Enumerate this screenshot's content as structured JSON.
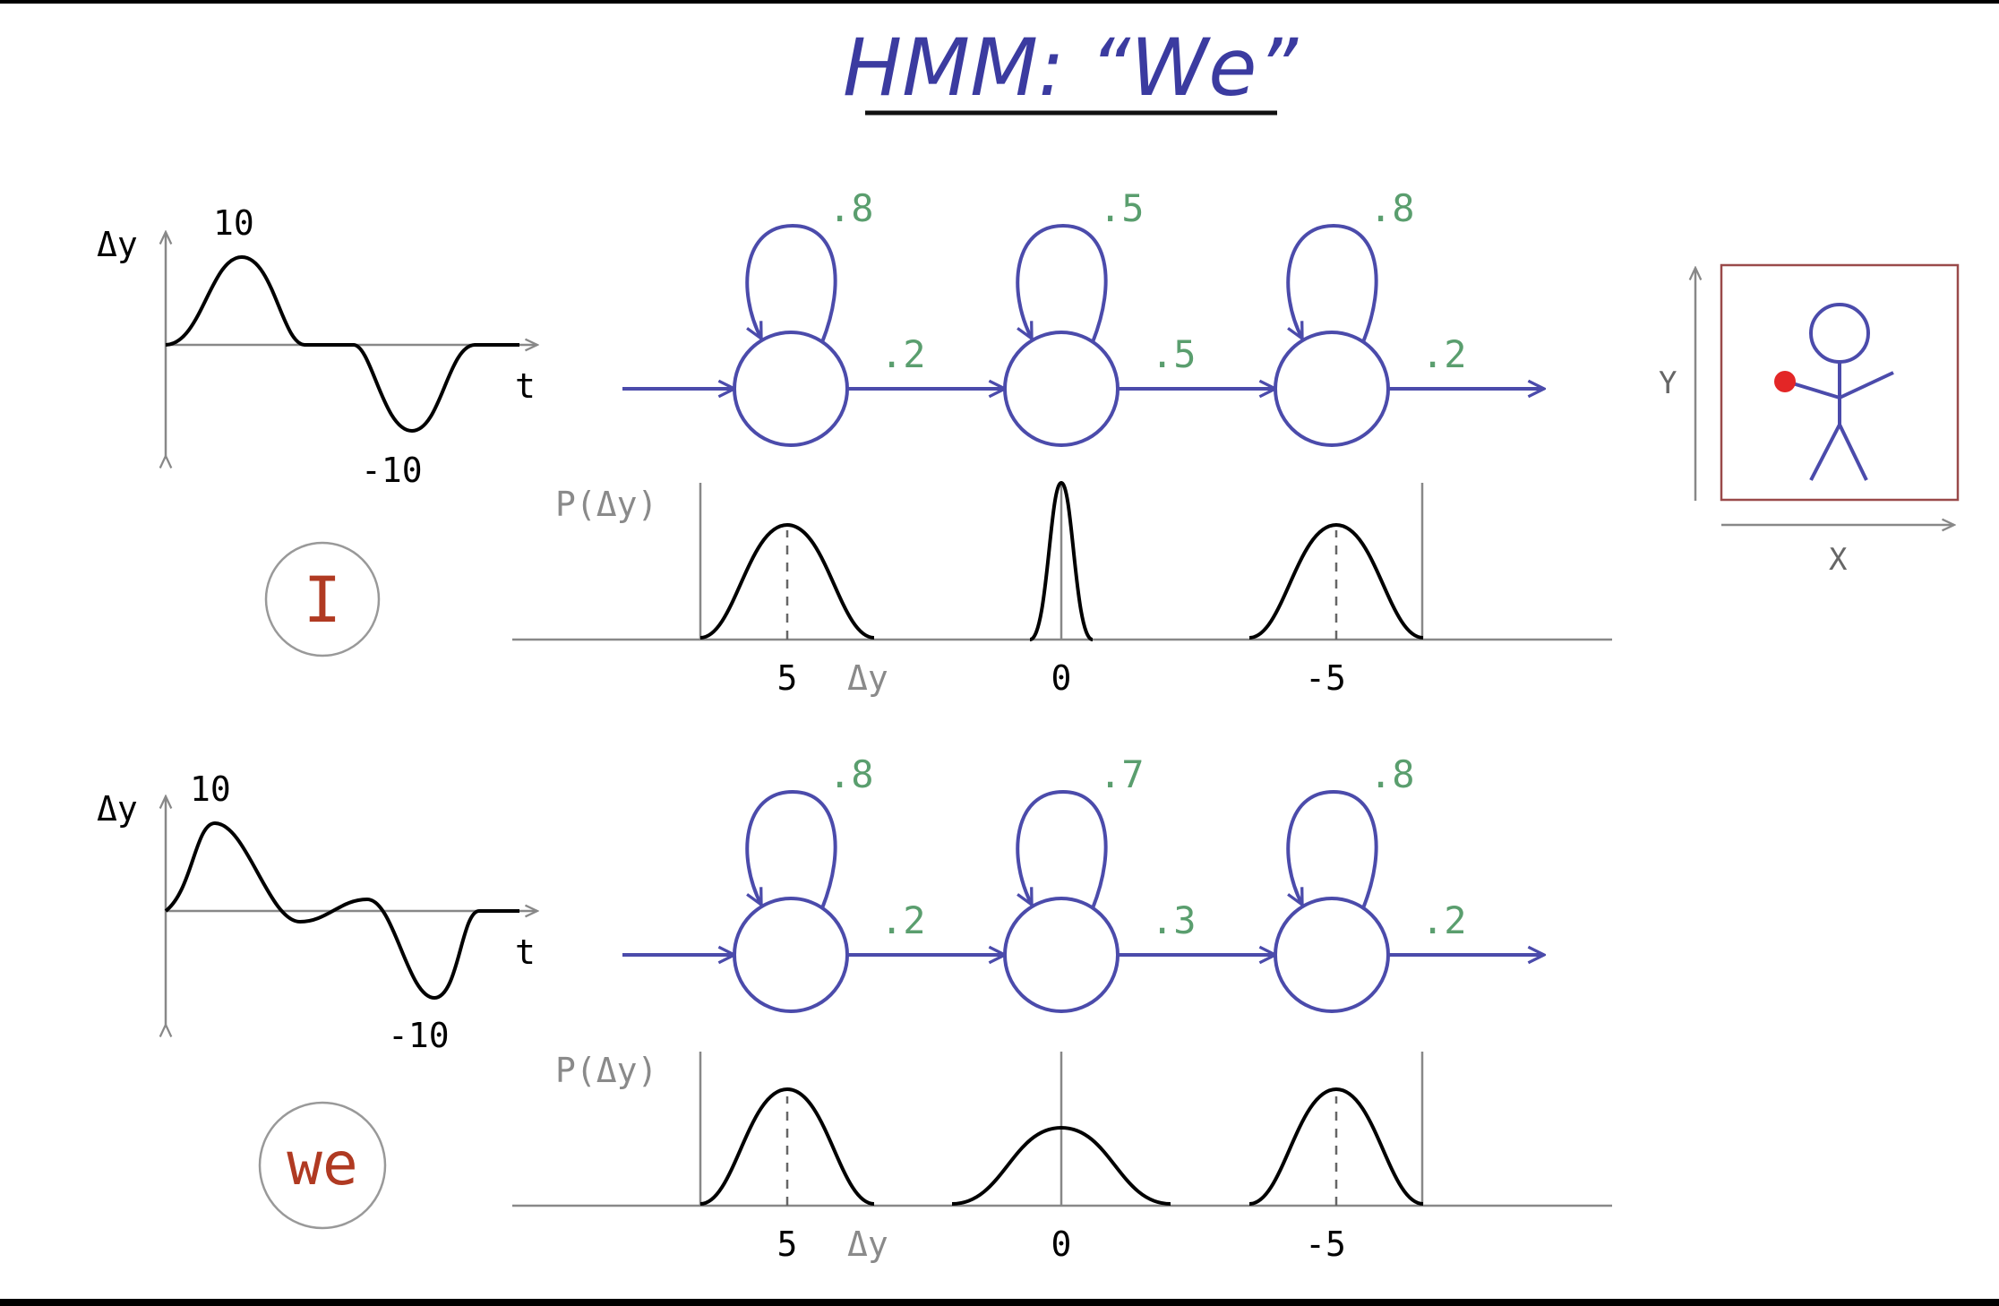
{
  "title": "HMM: “We”",
  "colors": {
    "state": "#4b4bab",
    "prob": "#5a9e6e",
    "word": "#b03a22",
    "dot": "#e32626",
    "axis": "#888888",
    "curve": "#000000"
  },
  "rows": [
    {
      "word": "I",
      "signal": {
        "y_axis": "Δy",
        "t_axis": "t",
        "max": "10",
        "min": "-10"
      },
      "self_probs": [
        ".8",
        ".5",
        ".8"
      ],
      "trans_probs": [
        ".2",
        ".5",
        ".2"
      ],
      "emission": {
        "ylabel": "P(Δy)",
        "xlabel": "Δy",
        "ticks": [
          "5",
          "0",
          "-5"
        ]
      }
    },
    {
      "word": "we",
      "signal": {
        "y_axis": "Δy",
        "t_axis": "t",
        "max": "10",
        "min": "-10"
      },
      "self_probs": [
        ".8",
        ".7",
        ".8"
      ],
      "trans_probs": [
        ".2",
        ".3",
        ".2"
      ],
      "emission": {
        "ylabel": "P(Δy)",
        "xlabel": "Δy",
        "ticks": [
          "5",
          "0",
          "-5"
        ]
      }
    }
  ],
  "figure": {
    "x_axis": "X",
    "y_axis": "Y"
  }
}
